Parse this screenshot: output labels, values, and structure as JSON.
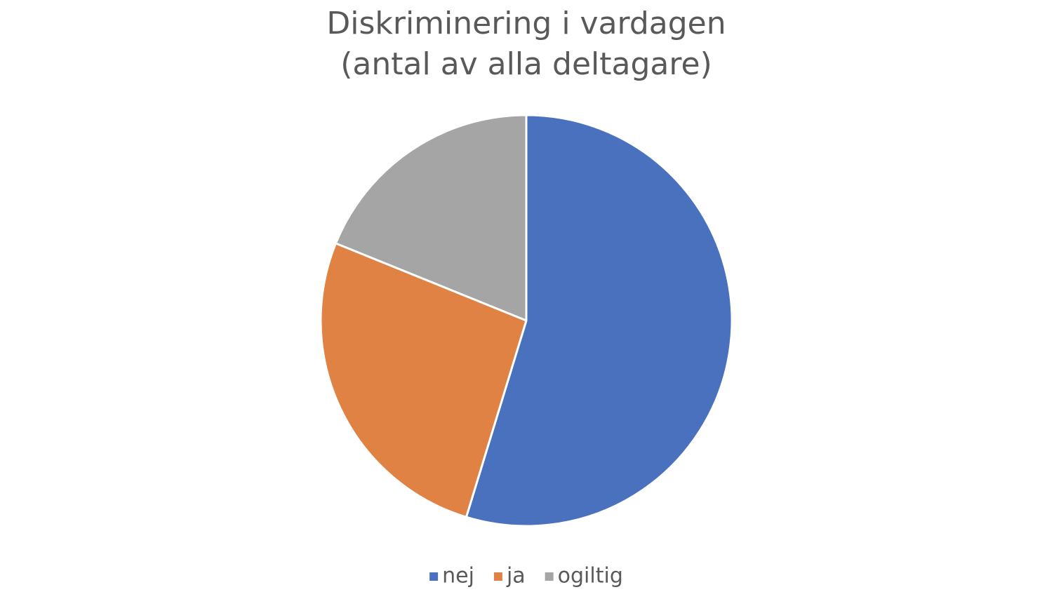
{
  "chart_data": {
    "type": "pie",
    "title": "Diskriminering i vardagen",
    "subtitle": "(antal av alla deltagare)",
    "categories": [
      "nej",
      "ja",
      "ogiltig"
    ],
    "values": [
      29,
      14,
      10
    ],
    "colors": [
      "#4a71bd",
      "#df8244",
      "#a5a5a5"
    ],
    "legend": "bottom"
  }
}
